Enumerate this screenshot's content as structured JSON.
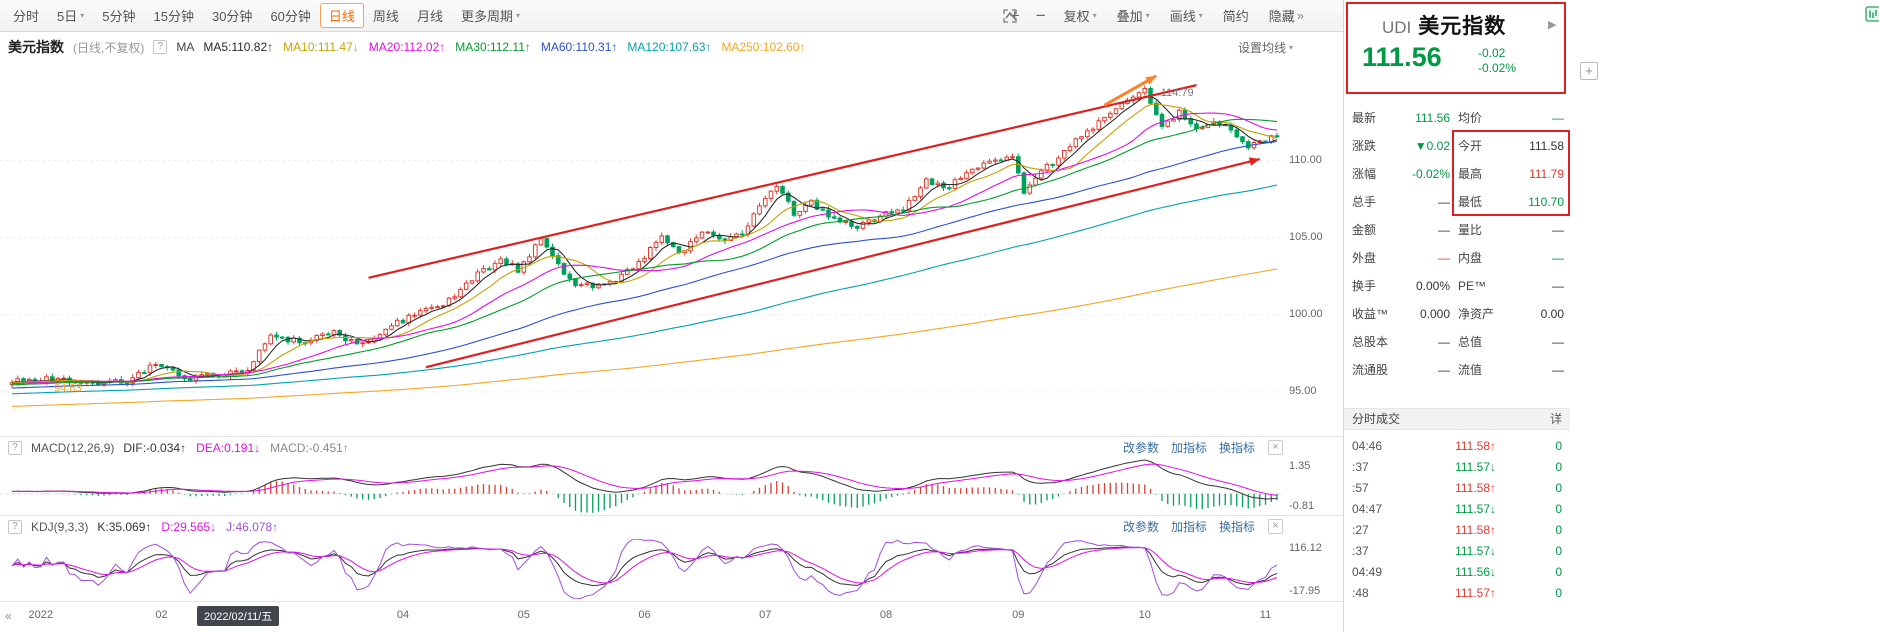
{
  "colors": {
    "up": "#e03c32",
    "down": "#00a15c",
    "accent_orange": "#ff7f27",
    "annotation_red": "#e01f1f",
    "green_text": "#009944",
    "red_text": "#e03c32",
    "link_blue": "#3a6ea5",
    "ma5": "#2b2b2b",
    "ma10": "#c7a100",
    "ma20": "#e60ee6",
    "ma30": "#00a02a",
    "ma60": "#2a50d8",
    "ma120": "#00a2b3",
    "ma250": "#f5a623",
    "dif": "#333333",
    "dea": "#e60ee6",
    "macd_text": "#888888",
    "k": "#333333",
    "d": "#e60ee6",
    "j": "#a24ce0"
  },
  "toolbar": {
    "periods": [
      {
        "label": "分时",
        "caret": false
      },
      {
        "label": "5日",
        "caret": true
      },
      {
        "label": "5分钟",
        "caret": false
      },
      {
        "label": "15分钟",
        "caret": false
      },
      {
        "label": "30分钟",
        "caret": false
      },
      {
        "label": "60分钟",
        "caret": false
      },
      {
        "label": "日线",
        "caret": false,
        "active": true
      },
      {
        "label": "周线",
        "caret": false
      },
      {
        "label": "月线",
        "caret": false
      },
      {
        "label": "更多周期",
        "caret": true
      }
    ],
    "zoom_in_label": "+",
    "zoom_out_label": "−",
    "right_items": [
      {
        "label": "复权",
        "caret": true
      },
      {
        "label": "叠加",
        "caret": true
      },
      {
        "label": "画线",
        "caret": true
      },
      {
        "label": "简约",
        "caret": false
      },
      {
        "label": "隐藏",
        "caret": false,
        "suffix": "»"
      }
    ]
  },
  "chart_header": {
    "title": "美元指数",
    "subtitle": "(日线,不复权)",
    "help_icon": "?",
    "ma_label": "MA",
    "ma_items": [
      {
        "label": "MA5:110.82",
        "arrow": "↑",
        "color_key": "ma5"
      },
      {
        "label": "MA10:111.47",
        "arrow": "↓",
        "color_key": "ma10"
      },
      {
        "label": "MA20:112.02",
        "arrow": "↑",
        "color_key": "ma20"
      },
      {
        "label": "MA30:112.11",
        "arrow": "↑",
        "color_key": "ma30"
      },
      {
        "label": "MA60:110.31",
        "arrow": "↑",
        "color_key": "ma60"
      },
      {
        "label": "MA120:107.63",
        "arrow": "↑",
        "color_key": "ma120"
      },
      {
        "label": "MA250:102.60",
        "arrow": "↑",
        "color_key": "ma250"
      }
    ],
    "settings_label": "设置均线"
  },
  "macd_panel": {
    "help_icon": "?",
    "name": "MACD(12,26,9)",
    "values": [
      {
        "label": "DIF:-0.034",
        "arrow": "↑",
        "color_key": "dif"
      },
      {
        "label": "DEA:0.191",
        "arrow": "↓",
        "color_key": "dea"
      },
      {
        "label": "MACD:-0.451",
        "arrow": "↑",
        "color_key": "macd_text"
      }
    ],
    "controls": [
      "改参数",
      "加指标",
      "换指标"
    ],
    "close_icon": "×",
    "y_labels": [
      "1.35",
      "-0.81"
    ]
  },
  "kdj_panel": {
    "help_icon": "?",
    "name": "KDJ(9,3,3)",
    "values": [
      {
        "label": "K:35.069",
        "arrow": "↑",
        "color_key": "k"
      },
      {
        "label": "D:29.565",
        "arrow": "↓",
        "color_key": "d"
      },
      {
        "label": "J:46.078",
        "arrow": "↑",
        "color_key": "j"
      }
    ],
    "controls": [
      "改参数",
      "加指标",
      "换指标"
    ],
    "close_icon": "×",
    "y_labels": [
      "116.12",
      "-17.95"
    ]
  },
  "xaxis": {
    "tooltip": "2022/02/11/五",
    "scroll_left_icon": "«"
  },
  "sidebar": {
    "code": "UDI",
    "name": "美元指数",
    "expand_icon": "▶",
    "add_label": "+",
    "price": "111.56",
    "change": "-0.02",
    "change_pct": "-0.02%",
    "rows": [
      {
        "l1": "最新",
        "v1": "111.56",
        "c1": "green",
        "l2": "均价",
        "v2": "—",
        "c2": "green"
      },
      {
        "l1": "涨跌",
        "v1": "▼0.02",
        "c1": "green",
        "l2": "今开",
        "v2": "111.58",
        "c2": "dark"
      },
      {
        "l1": "涨幅",
        "v1": "-0.02%",
        "c1": "green",
        "l2": "最高",
        "v2": "111.79",
        "c2": "red"
      },
      {
        "l1": "总手",
        "v1": "—",
        "c1": "dark",
        "l2": "最低",
        "v2": "110.70",
        "c2": "green"
      },
      {
        "l1": "金额",
        "v1": "—",
        "c1": "dark",
        "l2": "量比",
        "v2": "—",
        "c2": "dark"
      },
      {
        "l1": "外盘",
        "v1": "—",
        "c1": "red",
        "l2": "内盘",
        "v2": "—",
        "c2": "green"
      },
      {
        "l1": "换手",
        "v1": "0.00%",
        "c1": "dark",
        "l2": "PE™",
        "v2": "—",
        "c2": "dark"
      },
      {
        "l1": "收益™",
        "v1": "0.000",
        "c1": "dark",
        "l2": "净资产",
        "v2": "0.00",
        "c2": "dark"
      },
      {
        "l1": "总股本",
        "v1": "—",
        "c1": "dark",
        "l2": "总值",
        "v2": "—",
        "c2": "dark"
      },
      {
        "l1": "流通股",
        "v1": "—",
        "c1": "dark",
        "l2": "流值",
        "v2": "—",
        "c2": "dark"
      }
    ],
    "tape_header": "分时成交",
    "tape_detail": "详",
    "tape_volume": "0",
    "tape": [
      {
        "time": "04:46",
        "price": "111.58",
        "dir": "up"
      },
      {
        "time": ":37",
        "price": "111.57",
        "dir": "down"
      },
      {
        "time": ":57",
        "price": "111.58",
        "dir": "up"
      },
      {
        "time": "04:47",
        "price": "111.57",
        "dir": "down"
      },
      {
        "time": ":27",
        "price": "111.58",
        "dir": "up"
      },
      {
        "time": ":37",
        "price": "111.57",
        "dir": "down"
      },
      {
        "time": "04:49",
        "price": "111.56",
        "dir": "down"
      },
      {
        "time": ":48",
        "price": "111.57",
        "dir": "up"
      }
    ]
  },
  "chart_data": [
    {
      "type": "candlestick",
      "title": "美元指数 (日线,不复权) 2022",
      "n": 221,
      "x0": 12,
      "dx": 5.75,
      "candle_width": 3.6,
      "ylim": [
        92.2,
        116.4
      ],
      "y_axis": [
        {
          "v": 110,
          "label": "110.00"
        },
        {
          "v": 105,
          "label": "105.00"
        },
        {
          "v": 100,
          "label": "100.00"
        },
        {
          "v": 95,
          "label": "95.00"
        }
      ],
      "close_waypoints": [
        [
          0,
          95.7
        ],
        [
          8,
          95.85
        ],
        [
          14,
          95.55
        ],
        [
          20,
          95.7
        ],
        [
          25,
          96.8
        ],
        [
          30,
          95.9
        ],
        [
          36,
          96.1
        ],
        [
          41,
          96.4
        ],
        [
          45,
          98.7
        ],
        [
          50,
          98.2
        ],
        [
          56,
          98.8
        ],
        [
          61,
          98.0
        ],
        [
          66,
          99.3
        ],
        [
          71,
          100.2
        ],
        [
          76,
          100.9
        ],
        [
          81,
          102.6
        ],
        [
          85,
          103.6
        ],
        [
          88,
          102.9
        ],
        [
          92,
          104.9
        ],
        [
          95,
          103.2
        ],
        [
          98,
          102.0
        ],
        [
          101,
          101.9
        ],
        [
          105,
          102.3
        ],
        [
          109,
          103.3
        ],
        [
          113,
          105.2
        ],
        [
          116,
          103.9
        ],
        [
          120,
          105.4
        ],
        [
          124,
          104.7
        ],
        [
          127,
          105.3
        ],
        [
          130,
          106.9
        ],
        [
          133,
          108.5
        ],
        [
          136,
          106.6
        ],
        [
          139,
          107.3
        ],
        [
          143,
          106.1
        ],
        [
          147,
          105.7
        ],
        [
          151,
          106.4
        ],
        [
          155,
          106.9
        ],
        [
          159,
          108.7
        ],
        [
          163,
          108.3
        ],
        [
          167,
          109.6
        ],
        [
          171,
          109.9
        ],
        [
          174,
          110.3
        ],
        [
          176,
          107.8
        ],
        [
          179,
          109.3
        ],
        [
          182,
          110.1
        ],
        [
          185,
          111.3
        ],
        [
          188,
          112.2
        ],
        [
          191,
          113.0
        ],
        [
          194,
          113.9
        ],
        [
          197,
          114.55
        ],
        [
          200,
          112.4
        ],
        [
          203,
          113.1
        ],
        [
          206,
          111.9
        ],
        [
          209,
          112.7
        ],
        [
          212,
          111.9
        ],
        [
          215,
          110.9
        ],
        [
          218,
          111.3
        ],
        [
          220,
          111.56
        ]
      ],
      "noise_amp": 0.38,
      "prehistory": {
        "n": 250,
        "start": 92.5,
        "end": 95.6
      },
      "ma_periods": [
        5,
        10,
        20,
        30,
        60,
        120,
        250
      ],
      "ma_color_keys": [
        "ma5",
        "ma10",
        "ma20",
        "ma30",
        "ma60",
        "ma120",
        "ma250"
      ],
      "annotations": {
        "peak_label": "114.79",
        "peak_index": 197,
        "low_label": "94.63",
        "channel_upper": {
          "i1": 62,
          "v1": 102.4,
          "i2": 206,
          "v2": 114.9
        },
        "channel_lower": {
          "i1": 72,
          "v1": 96.6,
          "i2": 217,
          "v2": 110.1
        },
        "orange_arrow": {
          "i1": 190,
          "v1": 113.6,
          "i2": 199,
          "v2": 115.5
        }
      },
      "month_ticks": [
        {
          "label": "2022",
          "i": 5
        },
        {
          "label": "02",
          "i": 26
        },
        {
          "label": "04",
          "i": 68
        },
        {
          "label": "05",
          "i": 89
        },
        {
          "label": "06",
          "i": 110
        },
        {
          "label": "07",
          "i": 131
        },
        {
          "label": "08",
          "i": 152
        },
        {
          "label": "09",
          "i": 175
        },
        {
          "label": "10",
          "i": 197
        },
        {
          "label": "11",
          "i": 218
        }
      ]
    },
    {
      "type": "macd",
      "params": "12,26,9",
      "dif": -0.034,
      "dea": 0.191,
      "macd": -0.451,
      "y_axis_labels": [
        1.35,
        -0.81
      ]
    },
    {
      "type": "kdj",
      "params": "9,3,3",
      "k": 35.069,
      "d": 29.565,
      "j": 46.078,
      "y_axis_labels": [
        116.12,
        -17.95
      ]
    }
  ]
}
